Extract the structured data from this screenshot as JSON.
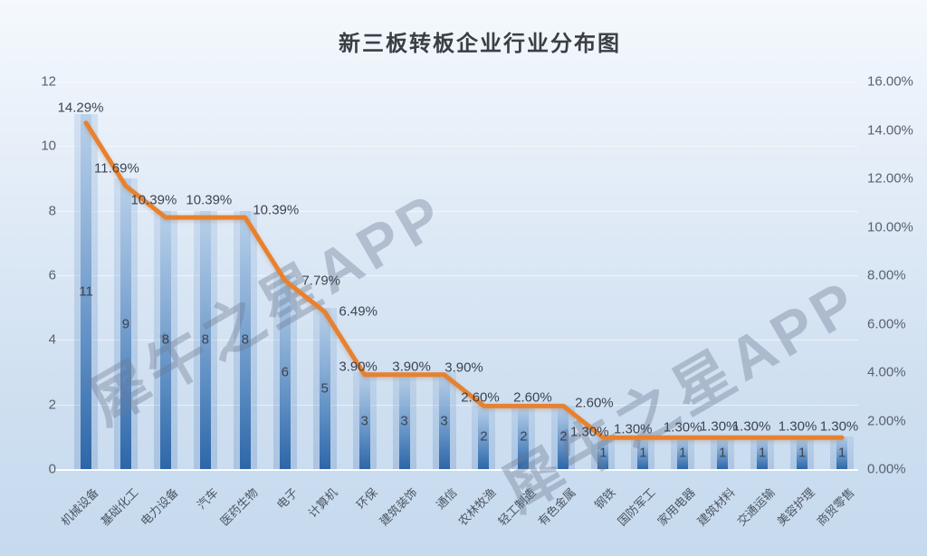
{
  "title": "新三板转板企业行业分布图",
  "watermark": "犀牛之星APP",
  "colors": {
    "background_top": "#f5f9fd",
    "background_bottom": "#c6daee",
    "bar_gradient_top": "#b9d1ea",
    "bar_gradient_bottom": "#2d66a8",
    "bar_halo": "rgba(120,160,205,0.30)",
    "line": "#e8812f",
    "data_label": "#3d4450",
    "axis_label": "#596270",
    "title_color": "#3a3f46",
    "gridline": "rgba(255,255,255,0.55)",
    "watermark_color": "rgba(108,122,144,0.38)"
  },
  "chart_data": {
    "type": "bar",
    "combo": "bar+line",
    "title": "新三板转板企业行业分布图",
    "categories": [
      "机械设备",
      "基础化工",
      "电力设备",
      "汽车",
      "医药生物",
      "电子",
      "计算机",
      "环保",
      "建筑装饰",
      "通信",
      "农林牧渔",
      "轻工制造",
      "有色金属",
      "钢铁",
      "国防军工",
      "家用电器",
      "建筑材料",
      "交通运输",
      "美容护理",
      "商贸零售"
    ],
    "series": [
      {
        "type": "bar",
        "axis": "left",
        "values": [
          11,
          9,
          8,
          8,
          8,
          6,
          5,
          3,
          3,
          3,
          2,
          2,
          2,
          1,
          1,
          1,
          1,
          1,
          1,
          1
        ]
      },
      {
        "type": "line",
        "axis": "right",
        "values_pct": [
          14.29,
          11.69,
          10.39,
          10.39,
          10.39,
          7.79,
          6.49,
          3.9,
          3.9,
          3.9,
          2.6,
          2.6,
          2.6,
          1.3,
          1.3,
          1.3,
          1.3,
          1.3,
          1.3,
          1.3
        ],
        "labels": [
          "14.29%",
          "11.69%",
          "10.39%",
          "10.39%",
          "10.39%",
          "7.79%",
          "6.49%",
          "3.90%",
          "3.90%",
          "3.90%",
          "2.60%",
          "2.60%",
          "2.60%",
          "1.30%",
          "1.30%",
          "1.30%",
          "1.30%",
          "1.30%",
          "1.30%",
          "1.30%"
        ]
      }
    ],
    "left_axis": {
      "min": 0,
      "max": 12,
      "step": 2,
      "ticks": [
        "12",
        "10",
        "8",
        "6",
        "4",
        "2",
        "0"
      ]
    },
    "right_axis": {
      "min_pct": 0,
      "max_pct": 16,
      "step_pct": 2,
      "ticks": [
        "16.00%",
        "14.00%",
        "12.00%",
        "10.00%",
        "8.00%",
        "6.00%",
        "4.00%",
        "2.00%",
        "0.00%"
      ]
    },
    "grid": true,
    "legend": "none",
    "bar_label_position": "center",
    "line_label_position": "above"
  }
}
